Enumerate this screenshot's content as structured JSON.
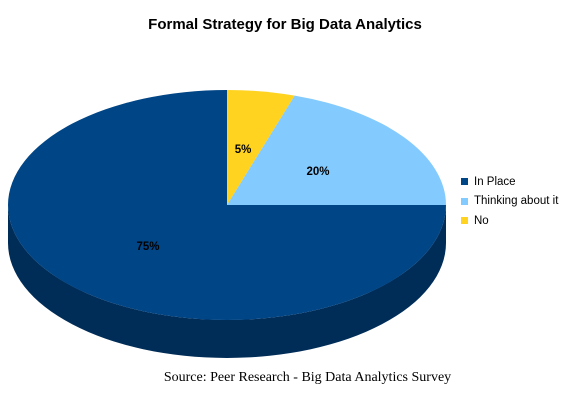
{
  "chart_data": {
    "type": "pie",
    "title": "Formal Strategy for Big Data Analytics",
    "categories": [
      "In Place",
      "Thinking about it",
      "No"
    ],
    "values": [
      75,
      20,
      5
    ],
    "data_labels": [
      "75%",
      "20%",
      "5%"
    ],
    "colors": [
      "#004586",
      "#83caff",
      "#ffd320"
    ],
    "side_colors": [
      "#002d58",
      "#5a90b8",
      "#c9a100"
    ],
    "legend_position": "right",
    "style": "3d"
  },
  "source": "Source: Peer Research - Big Data Analytics Survey"
}
